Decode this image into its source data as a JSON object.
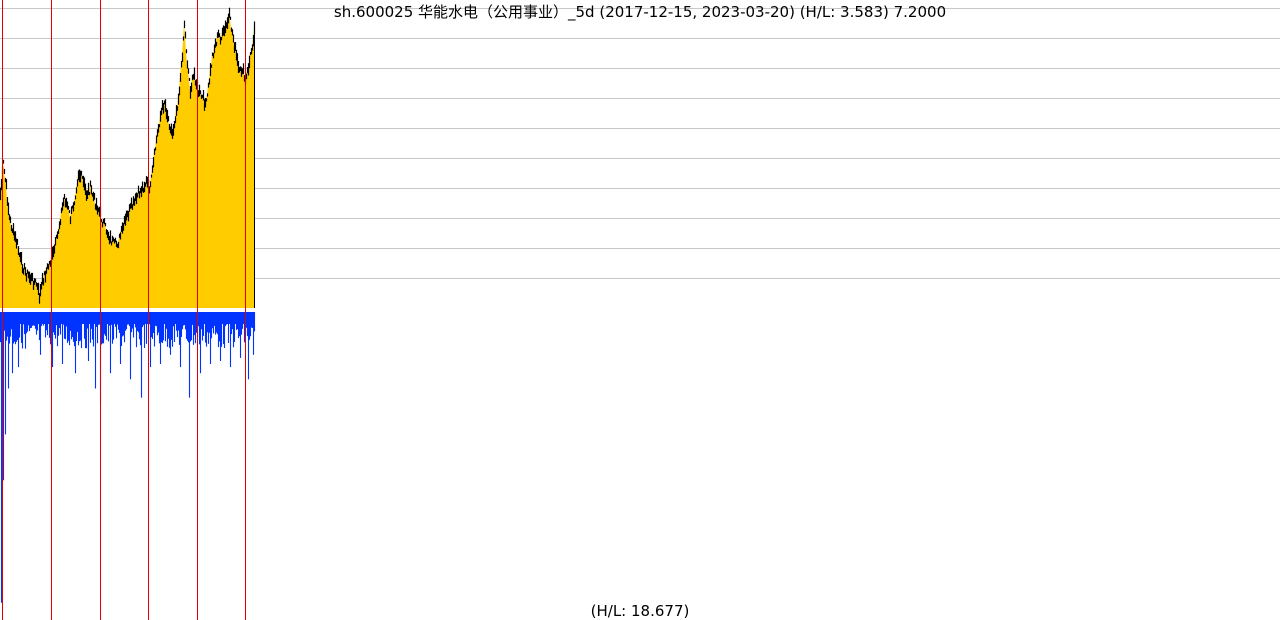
{
  "chart_data": [
    {
      "type": "area",
      "title": "sh.600025 华能水电（公用事业）_5d (2017-12-15, 2023-03-20) (H/L: 3.583) 7.2000",
      "x_range": [
        "2017-12-15",
        "2023-03-20"
      ],
      "high_low_ratio": 3.583,
      "last_value": 7.2,
      "grid": true,
      "colors": {
        "fill": "#ffcc00",
        "line": "#000000",
        "grid": "#c8c8c8"
      },
      "anchor_points": [
        [
          0,
          0.62
        ],
        [
          3,
          0.52
        ],
        [
          6,
          0.6
        ],
        [
          9,
          0.7
        ],
        [
          13,
          0.75
        ],
        [
          17,
          0.79
        ],
        [
          20,
          0.84
        ],
        [
          25,
          0.88
        ],
        [
          30,
          0.9
        ],
        [
          36,
          0.92
        ],
        [
          39,
          0.96
        ],
        [
          43,
          0.9
        ],
        [
          48,
          0.86
        ],
        [
          53,
          0.82
        ],
        [
          57,
          0.76
        ],
        [
          61,
          0.68
        ],
        [
          64,
          0.63
        ],
        [
          67,
          0.66
        ],
        [
          70,
          0.7
        ],
        [
          74,
          0.64
        ],
        [
          78,
          0.55
        ],
        [
          82,
          0.57
        ],
        [
          86,
          0.62
        ],
        [
          90,
          0.6
        ],
        [
          94,
          0.64
        ],
        [
          98,
          0.67
        ],
        [
          102,
          0.71
        ],
        [
          106,
          0.74
        ],
        [
          110,
          0.77
        ],
        [
          114,
          0.79
        ],
        [
          118,
          0.78
        ],
        [
          122,
          0.74
        ],
        [
          126,
          0.7
        ],
        [
          130,
          0.67
        ],
        [
          134,
          0.65
        ],
        [
          138,
          0.62
        ],
        [
          142,
          0.6
        ],
        [
          146,
          0.58
        ],
        [
          150,
          0.6
        ],
        [
          153,
          0.52
        ],
        [
          156,
          0.44
        ],
        [
          160,
          0.36
        ],
        [
          164,
          0.31
        ],
        [
          168,
          0.37
        ],
        [
          172,
          0.42
        ],
        [
          175,
          0.36
        ],
        [
          178,
          0.3
        ],
        [
          181,
          0.2
        ],
        [
          184,
          0.05
        ],
        [
          187,
          0.18
        ],
        [
          190,
          0.27
        ],
        [
          194,
          0.22
        ],
        [
          198,
          0.28
        ],
        [
          202,
          0.3
        ],
        [
          206,
          0.32
        ],
        [
          209,
          0.24
        ],
        [
          212,
          0.16
        ],
        [
          215,
          0.12
        ],
        [
          218,
          0.09
        ],
        [
          221,
          0.1
        ],
        [
          225,
          0.07
        ],
        [
          229,
          0.03
        ],
        [
          233,
          0.1
        ],
        [
          236,
          0.16
        ],
        [
          239,
          0.22
        ],
        [
          242,
          0.2
        ],
        [
          245,
          0.25
        ],
        [
          249,
          0.18
        ],
        [
          252,
          0.12
        ],
        [
          254,
          0.07
        ]
      ]
    },
    {
      "type": "bar",
      "footer": "(H/L: 18.677)",
      "bar_color": "#0033ff",
      "baseline_spikes": [
        [
          1,
          0.95
        ],
        [
          3,
          0.55
        ],
        [
          5,
          0.4
        ],
        [
          8,
          0.25
        ],
        [
          12,
          0.2
        ],
        [
          18,
          0.18
        ],
        [
          25,
          0.12
        ],
        [
          40,
          0.14
        ],
        [
          52,
          0.18
        ],
        [
          62,
          0.17
        ],
        [
          75,
          0.2
        ],
        [
          88,
          0.16
        ],
        [
          95,
          0.25
        ],
        [
          100,
          0.3
        ],
        [
          110,
          0.2
        ],
        [
          120,
          0.17
        ],
        [
          130,
          0.22
        ],
        [
          141,
          0.28
        ],
        [
          150,
          0.18
        ],
        [
          160,
          0.17
        ],
        [
          170,
          0.14
        ],
        [
          180,
          0.18
        ],
        [
          189,
          0.28
        ],
        [
          200,
          0.2
        ],
        [
          210,
          0.17
        ],
        [
          220,
          0.16
        ],
        [
          230,
          0.18
        ],
        [
          240,
          0.15
        ],
        [
          248,
          0.22
        ],
        [
          253,
          0.14
        ]
      ]
    }
  ],
  "footer_text": "(H/L: 18.677)"
}
